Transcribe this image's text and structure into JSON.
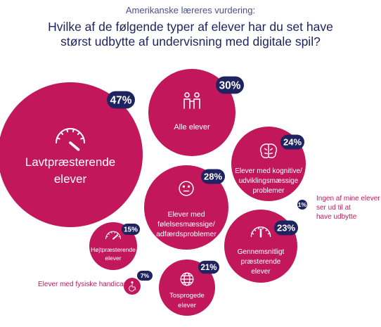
{
  "header": {
    "subtitle": "Amerikanske læreres vurdering:",
    "title_line1": "Hvilke af de følgende typer af elever har du set have",
    "title_line2": "størst udbytte af undervisning med digitale spil?"
  },
  "colors": {
    "bubble": "#c2185b",
    "badge": "#1f2460",
    "text_dark": "#1f2460",
    "accent_text": "#c2185b"
  },
  "chart_data": {
    "type": "bubble",
    "title": "Hvilke af de følgende typer af elever har du set have størst udbytte af undervisning med digitale spil?",
    "subtitle": "Amerikanske læreres vurdering:",
    "unit": "%",
    "series": [
      {
        "label": "Lavtpræsterende elever",
        "value": 47,
        "icon": "gauge-low-icon"
      },
      {
        "label": "Alle elever",
        "value": 30,
        "icon": "people-icon"
      },
      {
        "label": "Elever med følelsesmæssige/ adfærdsproblemer",
        "value": 28,
        "icon": "neutral-face-icon"
      },
      {
        "label": "Elever med kognitive/ udviklingsmæssige problemer",
        "value": 24,
        "icon": "brain-icon"
      },
      {
        "label": "Gennemsnitligt præsterende elever",
        "value": 23,
        "icon": "gauge-mid-icon"
      },
      {
        "label": "Tosprogede elever",
        "value": 21,
        "icon": "globe-icon"
      },
      {
        "label": "Højtpræsterende elever",
        "value": 15,
        "icon": "gauge-high-icon"
      },
      {
        "label": "Elever med fysiske handicap",
        "value": 7,
        "icon": "wheelchair-icon"
      },
      {
        "label": "Ingen af mine elever ser ud til at have udbytte",
        "value": 1,
        "icon": ""
      }
    ]
  }
}
